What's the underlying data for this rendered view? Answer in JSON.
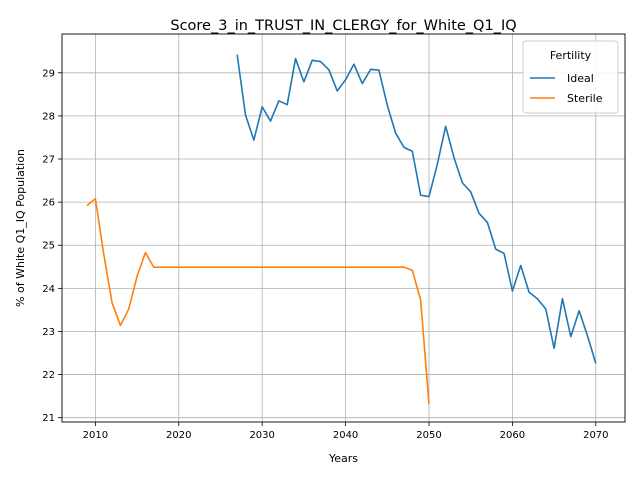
{
  "chart_data": {
    "type": "line",
    "title": "Score_3_in_TRUST_IN_CLERGY_for_White_Q1_IQ",
    "xlabel": "Years",
    "ylabel": "% of White Q1_IQ Population",
    "xlim": [
      2006,
      2073.5
    ],
    "ylim": [
      20.9,
      29.9
    ],
    "xticks": [
      2010,
      2020,
      2030,
      2040,
      2050,
      2060,
      2070
    ],
    "yticks": [
      21,
      22,
      23,
      24,
      25,
      26,
      27,
      28,
      29
    ],
    "grid": true,
    "legend": {
      "title": "Fertility",
      "placement": "top-right"
    },
    "series": [
      {
        "name": "Ideal",
        "color": "#1f77b4",
        "x": [
          2027,
          2028,
          2029,
          2030,
          2031,
          2032,
          2033,
          2034,
          2035,
          2036,
          2037,
          2038,
          2039,
          2040,
          2041,
          2042,
          2043,
          2044,
          2045,
          2046,
          2047,
          2048,
          2049,
          2050,
          2051,
          2052,
          2053,
          2054,
          2055,
          2056,
          2057,
          2058,
          2059,
          2060,
          2061,
          2062,
          2063,
          2064,
          2065,
          2066,
          2067,
          2068,
          2069,
          2070
        ],
        "y": [
          29.42,
          28.02,
          27.44,
          28.21,
          27.88,
          28.35,
          28.26,
          29.33,
          28.79,
          29.29,
          29.26,
          29.07,
          28.58,
          28.84,
          29.2,
          28.75,
          29.08,
          29.06,
          28.25,
          27.6,
          27.27,
          27.18,
          26.16,
          26.13,
          26.88,
          27.76,
          27.03,
          26.45,
          26.24,
          25.74,
          25.53,
          24.91,
          24.81,
          23.94,
          24.53,
          23.91,
          23.76,
          23.52,
          22.61,
          23.76,
          22.88,
          23.48,
          22.9,
          22.26
        ]
      },
      {
        "name": "Sterile",
        "color": "#ff7f0e",
        "x": [
          2009,
          2010,
          2011,
          2012,
          2013,
          2014,
          2015,
          2016,
          2017,
          2018,
          2019,
          2020,
          2021,
          2022,
          2023,
          2024,
          2025,
          2026,
          2027,
          2028,
          2029,
          2030,
          2031,
          2032,
          2033,
          2034,
          2035,
          2036,
          2037,
          2038,
          2039,
          2040,
          2041,
          2042,
          2043,
          2044,
          2045,
          2046,
          2047,
          2048,
          2049,
          2050
        ],
        "y": [
          25.92,
          26.08,
          24.8,
          23.67,
          23.14,
          23.52,
          24.28,
          24.83,
          24.49,
          24.49,
          24.49,
          24.49,
          24.49,
          24.49,
          24.49,
          24.49,
          24.49,
          24.49,
          24.49,
          24.49,
          24.49,
          24.49,
          24.49,
          24.49,
          24.49,
          24.49,
          24.49,
          24.49,
          24.49,
          24.49,
          24.49,
          24.49,
          24.49,
          24.49,
          24.49,
          24.49,
          24.49,
          24.49,
          24.49,
          24.42,
          23.73,
          21.31
        ]
      }
    ]
  }
}
